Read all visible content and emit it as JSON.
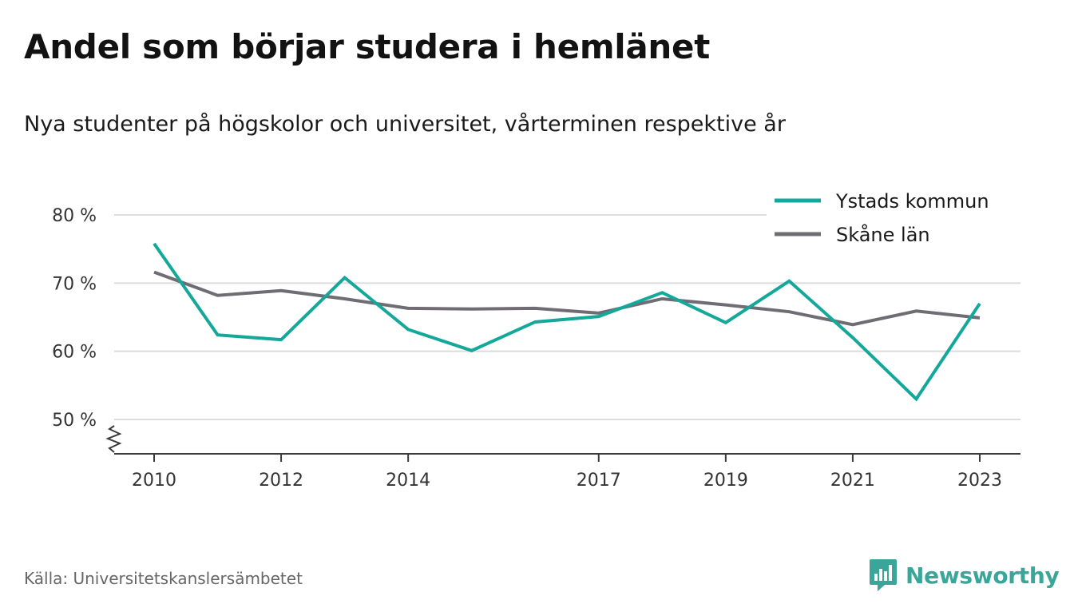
{
  "title": "Andel som börjar studera i hemlänet",
  "subtitle": "Nya studenter på högskolor och universitet, vårterminen respektive år",
  "source": "Källa: Universitetskanslersämbetet",
  "brand": {
    "name": "Newsworthy",
    "color": "#3aa69a",
    "icon": "newsworthy-bar-chart-icon"
  },
  "chart_data": {
    "type": "line",
    "x": [
      2010,
      2011,
      2012,
      2013,
      2014,
      2015,
      2016,
      2017,
      2018,
      2019,
      2020,
      2021,
      2022,
      2023
    ],
    "x_tick_labels": [
      "2010",
      "2012",
      "2014",
      "2017",
      "2019",
      "2021",
      "2023"
    ],
    "y_ticks": [
      50,
      60,
      70,
      80
    ],
    "y_tick_labels": [
      "50 %",
      "60 %",
      "70 %",
      "80 %"
    ],
    "ylim": [
      45,
      80
    ],
    "y_axis_break": true,
    "grid": true,
    "legend_position": "top-right",
    "series": [
      {
        "name": "Ystads kommun",
        "color": "#14a89a",
        "values": [
          75.8,
          62.4,
          61.7,
          70.8,
          63.2,
          60.1,
          64.3,
          65.1,
          68.6,
          64.2,
          70.3,
          62.0,
          53.0,
          67.0
        ]
      },
      {
        "name": "Skåne län",
        "color": "#6f6c73",
        "values": [
          71.6,
          68.2,
          68.9,
          67.7,
          66.3,
          66.2,
          66.3,
          65.6,
          67.7,
          66.8,
          65.8,
          63.9,
          65.9,
          64.9
        ]
      }
    ]
  }
}
